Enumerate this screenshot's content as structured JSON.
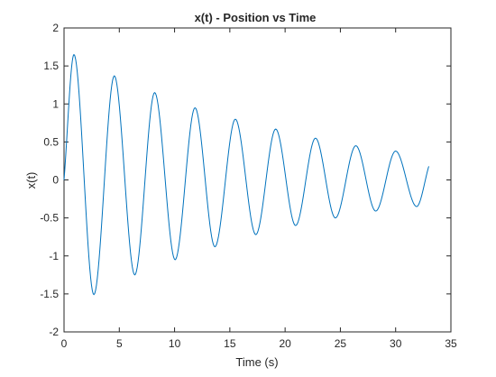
{
  "chart_data": {
    "type": "line",
    "title": "x(t) - Position vs Time",
    "xlabel": "Time (s)",
    "ylabel": "x(t)",
    "xlim": [
      0,
      35
    ],
    "ylim": [
      -2,
      2
    ],
    "xticks": [
      0,
      5,
      10,
      15,
      20,
      25,
      30,
      35
    ],
    "xtick_labels": [
      "0",
      "5",
      "10",
      "15",
      "20",
      "25",
      "30",
      "35"
    ],
    "yticks": [
      -2,
      -1.5,
      -1,
      -0.5,
      0,
      0.5,
      1,
      1.5,
      2
    ],
    "ytick_labels": [
      "-2",
      "-1.5",
      "-1",
      "-0.5",
      "0",
      "0.5",
      "1",
      "1.5",
      "2"
    ],
    "grid": false,
    "legend": null,
    "line_color": "#0072BD",
    "series": [
      {
        "x": [
          0,
          0.9,
          2.7,
          4.55,
          6.4,
          8.2,
          10.05,
          11.85,
          13.65,
          15.5,
          17.35,
          19.15,
          20.95,
          22.75,
          24.55,
          26.4,
          28.2,
          30.0,
          31.9,
          33.0
        ],
        "y": [
          0,
          1.65,
          -1.51,
          1.37,
          -1.25,
          1.15,
          -1.05,
          0.95,
          -0.88,
          0.8,
          -0.72,
          0.67,
          -0.6,
          0.55,
          -0.5,
          0.45,
          -0.41,
          0.38,
          -0.35,
          0.18
        ]
      }
    ]
  }
}
